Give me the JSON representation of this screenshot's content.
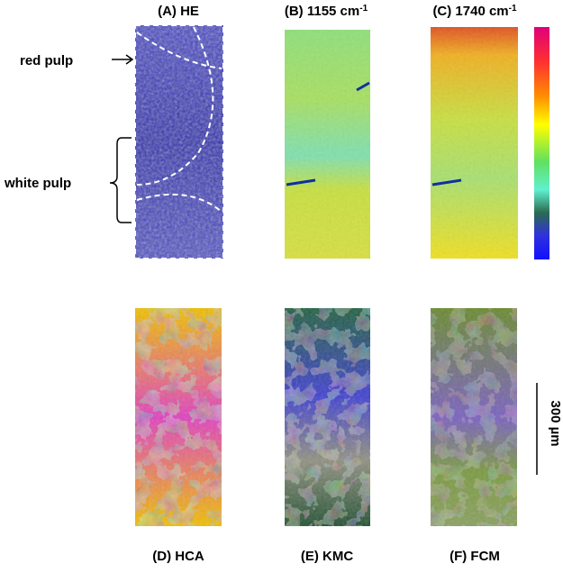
{
  "panels": [
    {
      "label": "(A) HE"
    },
    {
      "label": "(B) 1155 cm",
      "sup": "-1"
    },
    {
      "label": "(C) 1740 cm",
      "sup": "-1"
    },
    {
      "label": "(D) HCA"
    },
    {
      "label": "(E) KMC"
    },
    {
      "label": "(F) FCM"
    }
  ],
  "annotations": {
    "red_pulp": "red pulp",
    "white_pulp": "white pulp"
  },
  "scale_bar": {
    "label": "300 µm"
  }
}
